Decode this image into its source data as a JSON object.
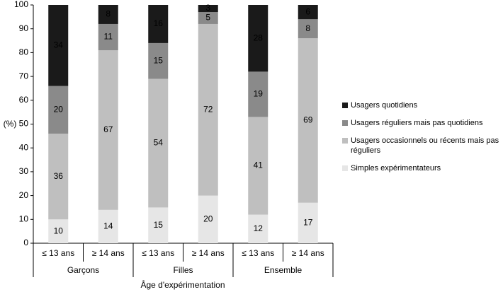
{
  "chart_data": {
    "type": "stacked_bar",
    "y_label": "(%)",
    "x_label": "Âge d'expérimentation",
    "categories": [
      "≤ 13 ans",
      "≥ 14 ans",
      "≤ 13 ans",
      "≥ 14 ans",
      "≤ 13 ans",
      "≥ 14 ans"
    ],
    "groups": [
      "Garçons",
      "Filles",
      "Ensemble"
    ],
    "series": [
      {
        "name": "Simples expérimentateurs",
        "color": "#e6e6e6",
        "values": [
          10,
          14,
          15,
          20,
          12,
          17
        ]
      },
      {
        "name": "Usagers occasionnels ou récents mais pas réguliers",
        "color": "#bfbfbf",
        "values": [
          36,
          67,
          54,
          72,
          41,
          69
        ]
      },
      {
        "name": "Usagers réguliers mais pas quotidiens",
        "color": "#8a8a8a",
        "values": [
          20,
          11,
          15,
          5,
          19,
          8
        ]
      },
      {
        "name": "Usagers quotidiens",
        "color": "#1a1a1a",
        "values": [
          34,
          8,
          16,
          3,
          28,
          6
        ]
      }
    ],
    "ylim": [
      0,
      100
    ],
    "yticks": [
      0,
      10,
      20,
      30,
      40,
      50,
      60,
      70,
      80,
      90,
      100
    ],
    "grid": false,
    "legend": "right"
  }
}
